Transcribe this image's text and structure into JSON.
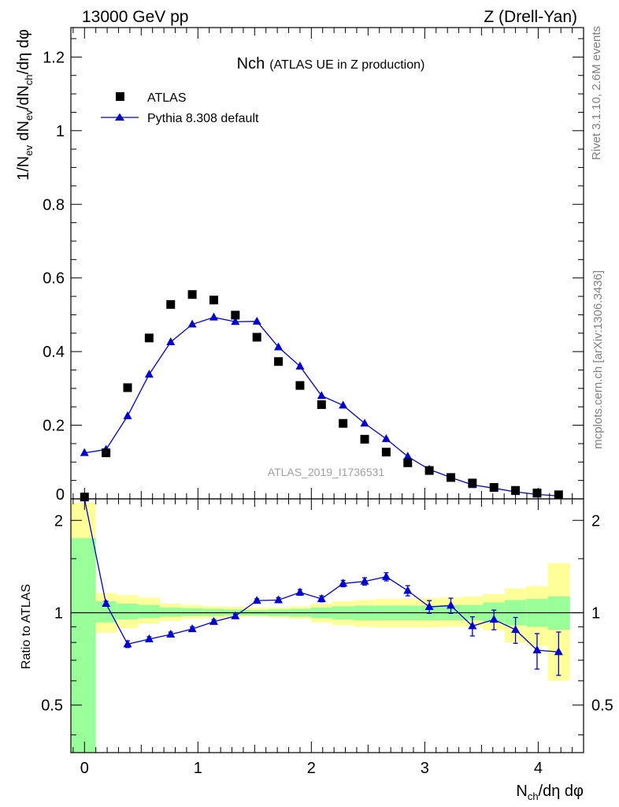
{
  "header": {
    "left": "13000 GeV pp",
    "right": "Z (Drell-Yan)"
  },
  "side_labels": {
    "rivet": "Rivet 3.1.10,  2.6M events",
    "mcplots": "mcplots.cern.ch [arXiv:1306.3436]"
  },
  "chart_data": [
    {
      "type": "scatter",
      "title": "Nch",
      "subtitle": "(ATLAS UE in Z production)",
      "analysis_tag": "ATLAS_2019_I1736531",
      "ylabel": "1/N_ev dN_ev/dN_ch/dη dφ",
      "xlim": [
        -0.12,
        4.4
      ],
      "ylim": [
        0,
        1.28
      ],
      "yticks": [
        0,
        0.2,
        0.4,
        0.6,
        0.8,
        1,
        1.2
      ],
      "ytick_labels": [
        "0",
        "0.2",
        "0.4",
        "0.6",
        "0.8",
        "1",
        "1.2"
      ],
      "legend": {
        "position": "top-left",
        "entries": [
          "ATLAS",
          "Pythia 8.308 default"
        ]
      },
      "series": [
        {
          "name": "ATLAS",
          "marker": "square",
          "color": "#000000",
          "x": [
            0.0,
            0.19,
            0.38,
            0.57,
            0.76,
            0.95,
            1.14,
            1.33,
            1.52,
            1.71,
            1.9,
            2.09,
            2.28,
            2.47,
            2.66,
            2.85,
            3.04,
            3.23,
            3.42,
            3.61,
            3.8,
            3.99,
            4.18
          ],
          "values": [
            0.005,
            0.125,
            0.302,
            0.437,
            0.528,
            0.555,
            0.54,
            0.499,
            0.439,
            0.373,
            0.308,
            0.256,
            0.205,
            0.162,
            0.127,
            0.098,
            0.077,
            0.058,
            0.043,
            0.031,
            0.023,
            0.016,
            0.011
          ]
        },
        {
          "name": "Pythia 8.308 default",
          "marker": "triangle",
          "color": "#0000d0",
          "x": [
            0.0,
            0.19,
            0.38,
            0.57,
            0.76,
            0.95,
            1.14,
            1.33,
            1.52,
            1.71,
            1.9,
            2.09,
            2.28,
            2.47,
            2.66,
            2.85,
            3.04,
            3.23,
            3.42,
            3.61,
            3.8,
            3.99,
            4.18
          ],
          "values": [
            0.125,
            0.134,
            0.225,
            0.338,
            0.426,
            0.474,
            0.493,
            0.481,
            0.482,
            0.412,
            0.36,
            0.28,
            0.254,
            0.205,
            0.163,
            0.115,
            0.08,
            0.058,
            0.038,
            0.029,
            0.019,
            0.012,
            0.008
          ]
        }
      ]
    },
    {
      "type": "line",
      "ylabel": "Ratio to ATLAS",
      "xlabel": "N_ch/dη dφ",
      "xlim": [
        -0.12,
        4.4
      ],
      "ylim": [
        0.35,
        2.35
      ],
      "log_y": true,
      "xticks": [
        0,
        1,
        2,
        3,
        4
      ],
      "xtick_labels": [
        "0",
        "1",
        "2",
        "3",
        "4"
      ],
      "yticks": [
        0.5,
        1,
        2
      ],
      "ytick_labels": [
        "0.5",
        "1",
        "2"
      ],
      "band_colors": {
        "inner": "#99ff99",
        "outer": "#ffff99"
      },
      "band_edges": [
        -0.12,
        0.1,
        0.285,
        0.475,
        0.665,
        0.855,
        1.045,
        1.235,
        1.425,
        1.615,
        1.805,
        1.995,
        2.185,
        2.375,
        2.565,
        2.755,
        2.945,
        3.135,
        3.325,
        3.515,
        3.705,
        3.895,
        4.085,
        4.28
      ],
      "band_inner": [
        [
          0.2,
          1.75
        ],
        [
          0.93,
          1.09
        ],
        [
          0.95,
          1.07
        ],
        [
          0.96,
          1.06
        ],
        [
          0.97,
          1.04
        ],
        [
          0.975,
          1.035
        ],
        [
          0.975,
          1.03
        ],
        [
          0.98,
          1.025
        ],
        [
          0.98,
          1.02
        ],
        [
          0.975,
          1.025
        ],
        [
          0.97,
          1.03
        ],
        [
          0.96,
          1.04
        ],
        [
          0.95,
          1.05
        ],
        [
          0.945,
          1.055
        ],
        [
          0.945,
          1.055
        ],
        [
          0.945,
          1.055
        ],
        [
          0.945,
          1.055
        ],
        [
          0.945,
          1.06
        ],
        [
          0.945,
          1.06
        ],
        [
          0.93,
          1.08
        ],
        [
          0.91,
          1.1
        ],
        [
          0.9,
          1.11
        ],
        [
          0.88,
          1.13
        ]
      ],
      "band_outer": [
        [
          0.2,
          2.28
        ],
        [
          0.86,
          1.16
        ],
        [
          0.89,
          1.14
        ],
        [
          0.92,
          1.12
        ],
        [
          0.94,
          1.07
        ],
        [
          0.955,
          1.06
        ],
        [
          0.96,
          1.05
        ],
        [
          0.965,
          1.045
        ],
        [
          0.97,
          1.04
        ],
        [
          0.965,
          1.04
        ],
        [
          0.955,
          1.05
        ],
        [
          0.93,
          1.07
        ],
        [
          0.91,
          1.09
        ],
        [
          0.9,
          1.1
        ],
        [
          0.895,
          1.11
        ],
        [
          0.895,
          1.11
        ],
        [
          0.895,
          1.115
        ],
        [
          0.9,
          1.12
        ],
        [
          0.9,
          1.13
        ],
        [
          0.875,
          1.15
        ],
        [
          0.8,
          1.2
        ],
        [
          0.78,
          1.22
        ],
        [
          0.6,
          1.45
        ]
      ],
      "reference_line": 1,
      "series": [
        {
          "name": "Pythia 8.308 default",
          "color": "#0000d0",
          "x": [
            0.19,
            0.38,
            0.57,
            0.76,
            0.95,
            1.14,
            1.33,
            1.52,
            1.71,
            1.9,
            2.09,
            2.28,
            2.47,
            2.66,
            2.85,
            3.04,
            3.23,
            3.42,
            3.61,
            3.8,
            3.99,
            4.18
          ],
          "values": [
            1.07,
            0.79,
            0.82,
            0.85,
            0.885,
            0.935,
            0.975,
            1.095,
            1.1,
            1.165,
            1.11,
            1.245,
            1.265,
            1.31,
            1.18,
            1.045,
            1.055,
            0.905,
            0.95,
            0.88,
            0.755,
            0.745
          ],
          "err_low": [
            0.02,
            0.02,
            0.015,
            0.015,
            0.015,
            0.015,
            0.015,
            0.015,
            0.02,
            0.025,
            0.025,
            0.03,
            0.035,
            0.04,
            0.045,
            0.05,
            0.06,
            0.065,
            0.07,
            0.085,
            0.1,
            0.12
          ],
          "err_high": [
            0.02,
            0.02,
            0.015,
            0.015,
            0.015,
            0.015,
            0.015,
            0.015,
            0.02,
            0.025,
            0.025,
            0.03,
            0.035,
            0.04,
            0.045,
            0.05,
            0.06,
            0.065,
            0.07,
            0.085,
            0.1,
            0.12
          ]
        }
      ]
    }
  ]
}
